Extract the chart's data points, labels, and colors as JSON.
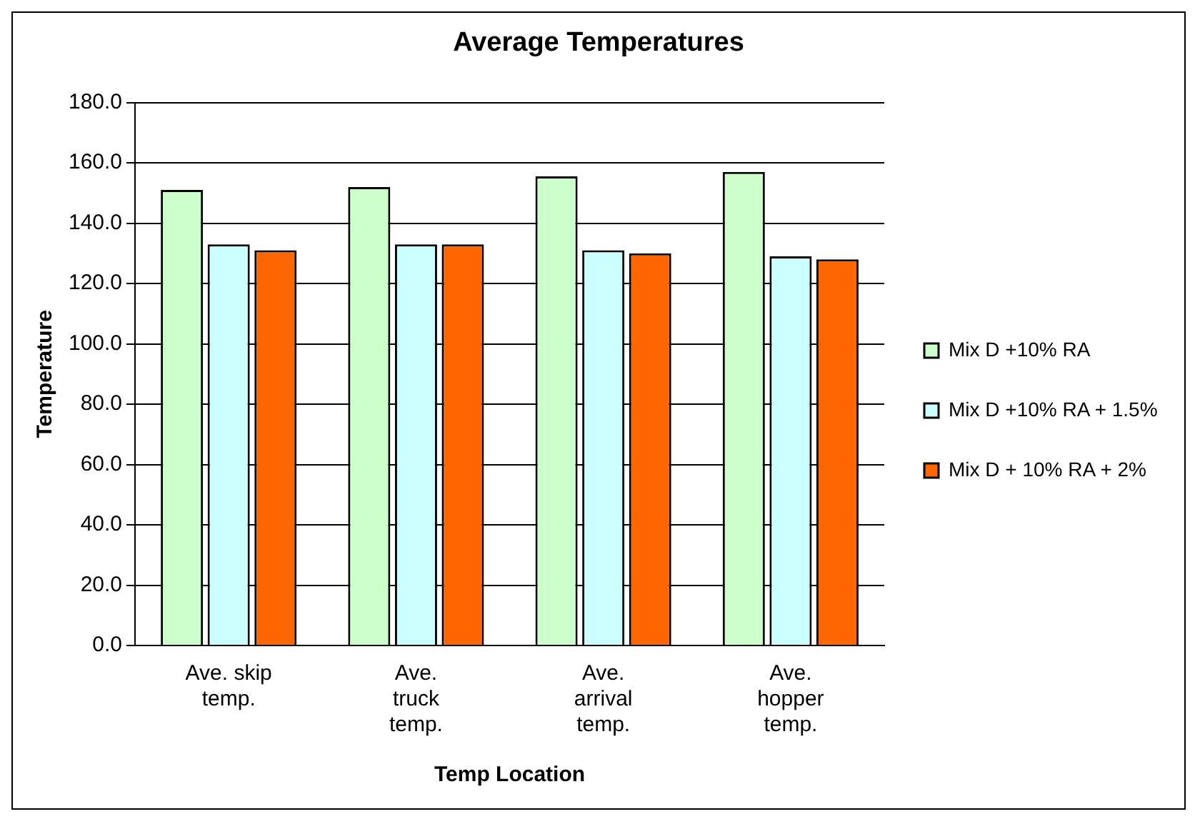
{
  "chart_data": {
    "type": "bar",
    "title": "Average Temperatures",
    "xlabel": "Temp Location",
    "ylabel": "Temperature",
    "categories": [
      "Ave. skip temp.",
      "Ave. truck temp.",
      "Ave. arrival temp.",
      "Ave. hopper temp."
    ],
    "series": [
      {
        "name": "Mix D +10% RA",
        "color": "#ccffcc",
        "values": [
          151,
          152,
          155.5,
          157
        ]
      },
      {
        "name": "Mix D +10% RA + 1.5%",
        "color": "#ccffff",
        "values": [
          133,
          133,
          131,
          129
        ]
      },
      {
        "name": "Mix D + 10% RA + 2%",
        "color": "#ff6600",
        "values": [
          131,
          133,
          130,
          128
        ]
      }
    ],
    "ylim": [
      0,
      180
    ],
    "yticks": [
      {
        "value": 0,
        "label": "0.0"
      },
      {
        "value": 20,
        "label": "20.0"
      },
      {
        "value": 40,
        "label": "40.0"
      },
      {
        "value": 60,
        "label": "60.0"
      },
      {
        "value": 80,
        "label": "80.0"
      },
      {
        "value": 100,
        "label": "100.0"
      },
      {
        "value": 120,
        "label": "120.0"
      },
      {
        "value": 140,
        "label": "140.0"
      },
      {
        "value": 160,
        "label": "160.0"
      },
      {
        "value": 180,
        "label": "180.0"
      }
    ],
    "grid": "y",
    "legend": "right"
  }
}
